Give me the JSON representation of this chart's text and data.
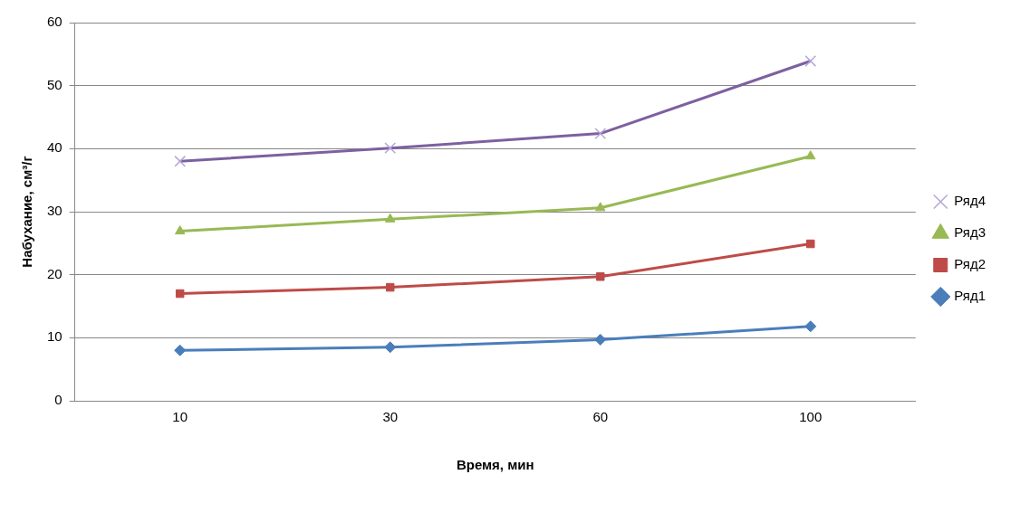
{
  "chart_data": {
    "type": "line",
    "xlabel": "Время, мин",
    "ylabel": "Набухание, см³/г",
    "categories": [
      "10",
      "30",
      "60",
      "100"
    ],
    "ylim": [
      0,
      60
    ],
    "yticks": [
      0,
      10,
      20,
      30,
      40,
      50,
      60
    ],
    "grid": "y",
    "legend": "right",
    "series": [
      {
        "name": "Ряд1",
        "color": "#4a7ebb",
        "marker": "diamond",
        "values": [
          8,
          8.5,
          9.7,
          11.8
        ]
      },
      {
        "name": "Ряд2",
        "color": "#be4b48",
        "marker": "square",
        "values": [
          17,
          18,
          19.7,
          24.9
        ]
      },
      {
        "name": "Ряд3",
        "color": "#98b954",
        "marker": "triangle",
        "values": [
          26.9,
          28.8,
          30.6,
          38.8
        ]
      },
      {
        "name": "Ряд4",
        "color": "#7d60a0",
        "marker": "cross",
        "values": [
          38,
          40.1,
          42.4,
          53.9
        ]
      }
    ]
  }
}
